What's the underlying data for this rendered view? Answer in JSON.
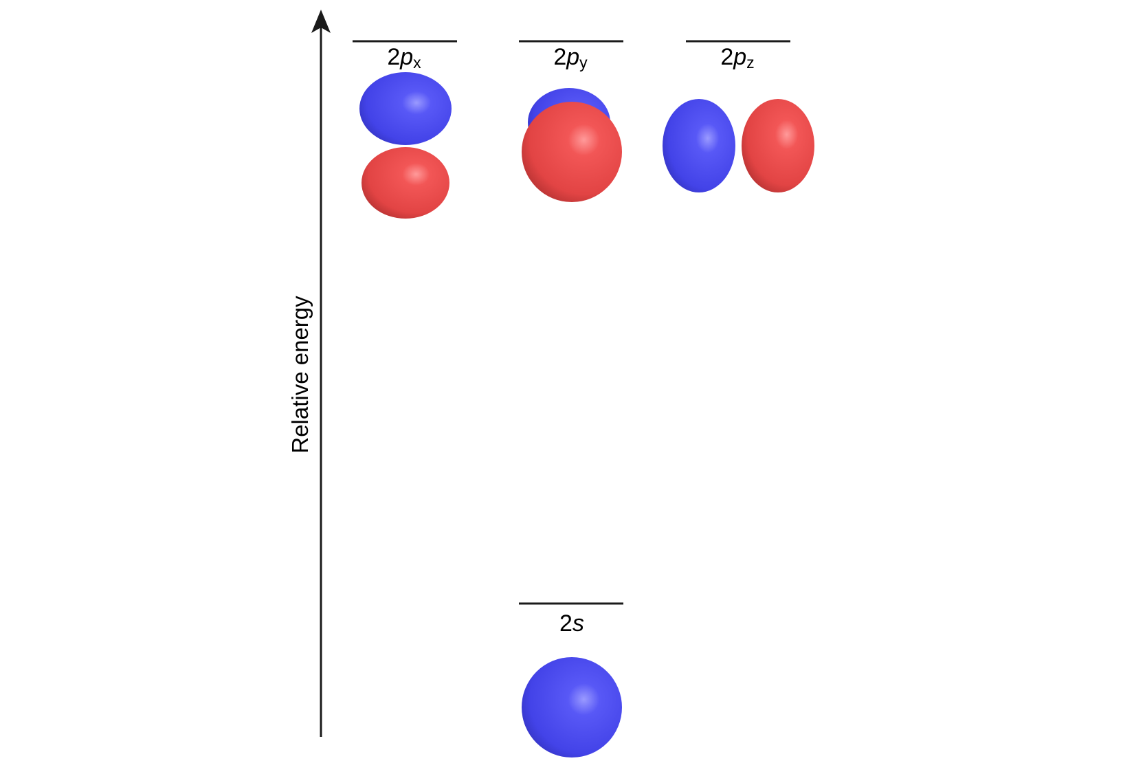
{
  "axis": {
    "label": "Relative energy"
  },
  "levels": [
    {
      "id": "2px",
      "number": "2",
      "letter": "p",
      "subscript": "x"
    },
    {
      "id": "2py",
      "number": "2",
      "letter": "p",
      "subscript": "y"
    },
    {
      "id": "2pz",
      "number": "2",
      "letter": "p",
      "subscript": "z"
    },
    {
      "id": "2s",
      "number": "2",
      "letter": "s",
      "subscript": ""
    }
  ],
  "colors": {
    "positive_lobe": "#4a4af0",
    "negative_lobe": "#ee4848",
    "line": "#1a1a1a"
  }
}
